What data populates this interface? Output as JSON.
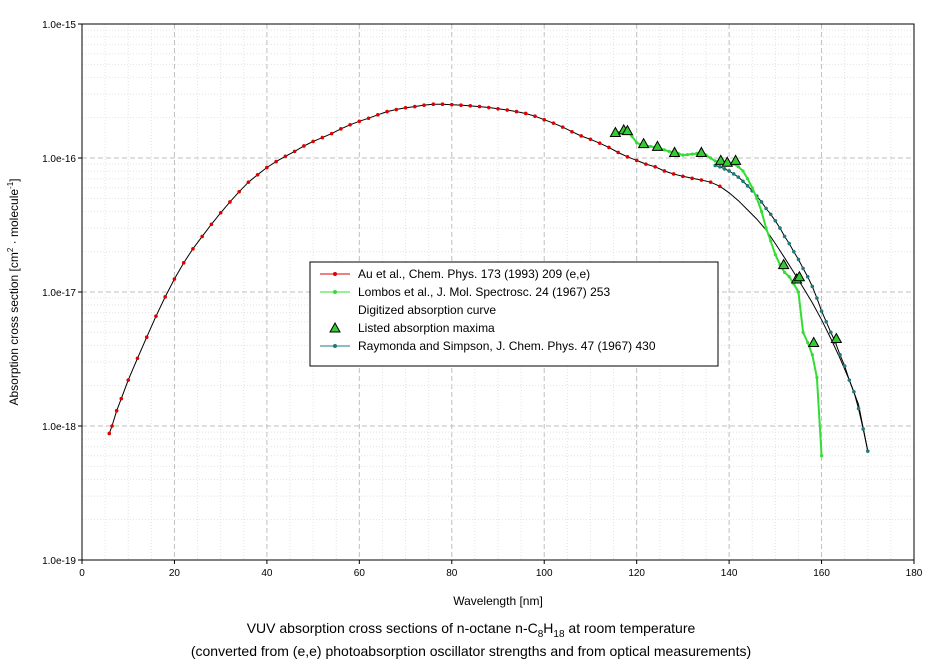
{
  "chart_data": {
    "type": "line",
    "caption": {
      "line1_prefix": "VUV absorption cross sections of n-octane n-C",
      "line1_sub1": "8",
      "line1_mid": "H",
      "line1_sub2": "18",
      "line1_suffix": " at room temperature",
      "line2": "(converted from (e,e) photoabsorption oscillator strengths and from optical measurements)"
    },
    "xlabel": "Wavelength [nm]",
    "ylabel": {
      "prefix": "Absorption cross section [cm",
      "sup1": "2",
      "mid": " · molecule",
      "sup2": "-1",
      "suffix": "]"
    },
    "xlim": [
      0,
      180
    ],
    "ylim": [
      1e-19,
      1e-15
    ],
    "yscale": "log",
    "grid": true,
    "legend_position": "center",
    "x_ticks": [
      "0",
      "20",
      "40",
      "60",
      "80",
      "100",
      "120",
      "140",
      "160",
      "180"
    ],
    "y_ticks": [
      "1.0e-19",
      "1.0e-18",
      "1.0e-17",
      "1.0e-16",
      "1.0e-15"
    ],
    "legend": [
      {
        "label": "Au et al., Chem. Phys. 173 (1993) 209 (e,e)",
        "color": "#e00000",
        "marker": "dot"
      },
      {
        "label": "Lombos et al., J. Mol. Spectrosc. 24 (1967) 253",
        "color": "#33dd33",
        "marker": "dot"
      },
      {
        "label": "Digitized absorption curve",
        "color": "",
        "marker": "none"
      },
      {
        "label": "Listed absorption maxima",
        "color": "#33cc33",
        "marker": "triangle"
      },
      {
        "label": "Raymonda and Simpson, J. Chem. Phys. 47 (1967) 430",
        "color": "#1f7a7a",
        "marker": "dot"
      }
    ],
    "series": [
      {
        "name": "Au et al., Chem. Phys. 173 (1993) 209 (e,e)",
        "color": "#e00000",
        "line_color": "#000000",
        "x": [
          5.9,
          6.5,
          7.5,
          8.5,
          10,
          12,
          14,
          16,
          18,
          20,
          22,
          24,
          26,
          28,
          30,
          32,
          34,
          36,
          38,
          40,
          42,
          44,
          46,
          48,
          50,
          52,
          54,
          56,
          58,
          60,
          62,
          64,
          66,
          68,
          70,
          72,
          74,
          76,
          78,
          80,
          82,
          84,
          86,
          88,
          90,
          92,
          94,
          96,
          98,
          100,
          102,
          104,
          106,
          108,
          110,
          112,
          114,
          116,
          118,
          120,
          122,
          124,
          126,
          128,
          130,
          132,
          134,
          136,
          138
        ],
        "y": [
          8.8e-19,
          1e-18,
          1.3e-18,
          1.6e-18,
          2.2e-18,
          3.2e-18,
          4.6e-18,
          6.6e-18,
          9.2e-18,
          1.25e-17,
          1.65e-17,
          2.1e-17,
          2.6e-17,
          3.2e-17,
          3.9e-17,
          4.7e-17,
          5.6e-17,
          6.6e-17,
          7.5e-17,
          8.5e-17,
          9.4e-17,
          1.03e-16,
          1.12e-16,
          1.23e-16,
          1.33e-16,
          1.42e-16,
          1.52e-16,
          1.65e-16,
          1.77e-16,
          1.88e-16,
          1.98e-16,
          2.1e-16,
          2.22e-16,
          2.3e-16,
          2.37e-16,
          2.42e-16,
          2.48e-16,
          2.52e-16,
          2.52e-16,
          2.5e-16,
          2.48e-16,
          2.45e-16,
          2.42e-16,
          2.38e-16,
          2.33e-16,
          2.28e-16,
          2.22e-16,
          2.15e-16,
          2.05e-16,
          1.93e-16,
          1.82e-16,
          1.7e-16,
          1.57e-16,
          1.46e-16,
          1.38e-16,
          1.29e-16,
          1.2e-16,
          1.1e-16,
          1.02e-16,
          9.6e-17,
          9e-17,
          8.6e-17,
          8e-17,
          7.6e-17,
          7.3e-17,
          7.05e-17,
          6.85e-17,
          6.6e-17,
          6.15e-17
        ]
      },
      {
        "name": "Au et al. (e,e) continuation",
        "color": "#000000",
        "x": [
          138,
          140,
          142,
          144,
          146,
          148,
          150,
          152,
          154,
          156,
          158,
          160,
          162,
          164,
          166,
          168,
          170
        ],
        "y": [
          6.15e-17,
          5.5e-17,
          4.8e-17,
          4.1e-17,
          3.5e-17,
          2.9e-17,
          2.3e-17,
          1.8e-17,
          1.4e-17,
          1.08e-17,
          8.3e-18,
          6.2e-18,
          4.5e-18,
          3.2e-18,
          2.2e-18,
          1.45e-18,
          6.5e-19
        ]
      },
      {
        "name": "Lombos et al., J. Mol. Spectrosc. 24 (1967) 253",
        "color": "#33dd33",
        "x": [
          115,
          116,
          117,
          118,
          119,
          120,
          121,
          122,
          123,
          124,
          125,
          126,
          127,
          128,
          129,
          130,
          131,
          132,
          133,
          134,
          135,
          136,
          137,
          138,
          139,
          140,
          141,
          142,
          143,
          144,
          145,
          146,
          147,
          148,
          149,
          150,
          151,
          152,
          153,
          154,
          155,
          156,
          157,
          158,
          159,
          160
        ],
        "y": [
          1.5e-16,
          1.55e-16,
          1.6e-16,
          1.58e-16,
          1.45e-16,
          1.3e-16,
          1.25e-16,
          1.24e-16,
          1.22e-16,
          1.2e-16,
          1.18e-16,
          1.15e-16,
          1.12e-16,
          1.1e-16,
          1.08e-16,
          1.05e-16,
          1.06e-16,
          1.07e-16,
          1.08e-16,
          1.1e-16,
          1.05e-16,
          1e-16,
          9.5e-17,
          9.3e-17,
          9.1e-17,
          9.2e-17,
          9e-17,
          8.6e-17,
          8e-17,
          7e-17,
          6e-17,
          5e-17,
          4e-17,
          3e-17,
          2.4e-17,
          1.9e-17,
          1.6e-17,
          1.4e-17,
          1.3e-17,
          1.15e-17,
          1e-17,
          5e-18,
          4.2e-18,
          3.4e-18,
          2.3e-18,
          6e-19
        ]
      },
      {
        "name": "Listed absorption maxima",
        "color": "#33cc33",
        "x": [
          115.4,
          117.2,
          118.0,
          121.5,
          124.5,
          128.2,
          134.0,
          138.2,
          139.6,
          141.4,
          151.8,
          154.6,
          155.2,
          158.3,
          163.2
        ],
        "y": [
          1.55e-16,
          1.62e-16,
          1.6e-16,
          1.28e-16,
          1.22e-16,
          1.1e-16,
          1.1e-16,
          9.6e-17,
          9.3e-17,
          9.6e-17,
          1.6e-17,
          1.25e-17,
          1.3e-17,
          4.2e-18,
          4.5e-18
        ]
      },
      {
        "name": "Raymonda and Simpson, J. Chem. Phys. 47 (1967) 430",
        "color": "#1f7a7a",
        "x": [
          137,
          138,
          139,
          140,
          141,
          142,
          143,
          144,
          145,
          146,
          147,
          148,
          149,
          150,
          151,
          152,
          153,
          154,
          155,
          156,
          157,
          158,
          159,
          160,
          161,
          162,
          163,
          164,
          165,
          166,
          167,
          168,
          169,
          170
        ],
        "y": [
          8.8e-17,
          8.6e-17,
          8.3e-17,
          8e-17,
          7.6e-17,
          7.2e-17,
          6.7e-17,
          6.2e-17,
          5.7e-17,
          5.2e-17,
          4.7e-17,
          4.2e-17,
          3.8e-17,
          3.4e-17,
          3e-17,
          2.6e-17,
          2.3e-17,
          2e-17,
          1.75e-17,
          1.5e-17,
          1.3e-17,
          1.1e-17,
          9e-18,
          7.2e-18,
          6e-18,
          5e-18,
          4.2e-18,
          3.4e-18,
          2.8e-18,
          2.2e-18,
          1.8e-18,
          1.35e-18,
          9.5e-19,
          6.5e-19
        ]
      }
    ]
  }
}
